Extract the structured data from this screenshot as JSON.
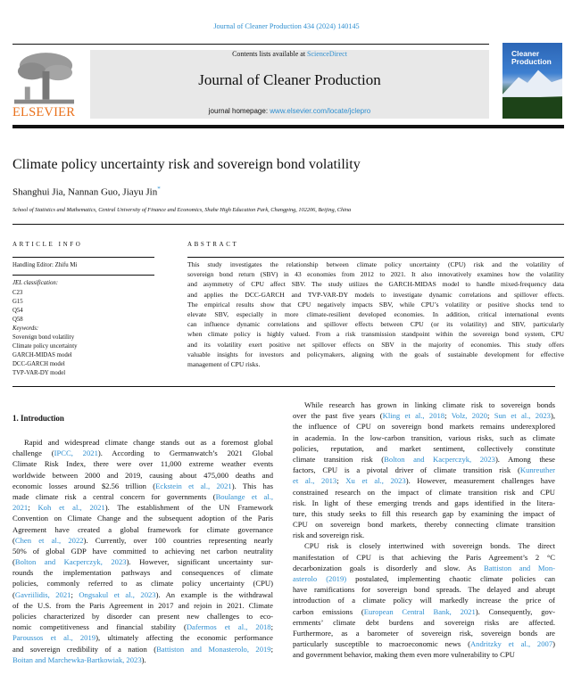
{
  "header": {
    "journal_reference": "Journal of Cleaner Production 434 (2024) 140145",
    "contents_prefix": "Contents lists available at ",
    "contents_link": "ScienceDirect",
    "journal_title": "Journal of Cleaner Production",
    "homepage_prefix": "journal homepage: ",
    "homepage_link": "www.elsevier.com/locate/jclepro",
    "publisher": "ELSEVIER",
    "cover_title": "Cleaner Production",
    "link_color": "#2f8fd0",
    "publisher_color": "#e9711c"
  },
  "article": {
    "title": "Climate policy uncertainty risk and sovereign bond volatility",
    "authors": "Shanghui Jia, Nannan Guo, Jiayu Jin",
    "corresponding_mark": "*",
    "affiliation": "School of Statistics and Mathematics, Central University of Finance and Economics, Shahe High Education Park, Changping, 102206, Beijing, China"
  },
  "article_info": {
    "heading": "ARTICLE INFO",
    "handling_editor": "Handling Editor: Zhifu Mi",
    "jel_label": "JEL classification:",
    "jel_codes": [
      "C23",
      "G15",
      "Q54",
      "Q58"
    ],
    "keywords_label": "Keywords:",
    "keywords": [
      "Sovereign bond volatility",
      "Climate policy uncertainty",
      "GARCH-MIDAS model",
      "DCC-GARCH model",
      "TVP-VAR-DY model"
    ]
  },
  "abstract": {
    "heading": "ABSTRACT",
    "lines": [
      [
        {
          "t": "This study investigates the relationship between climate policy uncertainty (CPU) risk and the volatility of"
        }
      ],
      [
        {
          "t": "sovereign bond return (SBV) in 43 economies from 2012 to 2021. It also innovatively examines how the volatility"
        }
      ],
      [
        {
          "t": "and asymmetry of CPU affect SBV. The study utilizes the GARCH-MIDAS model to handle mixed-frequency data"
        }
      ],
      [
        {
          "t": "and applies the DCC-GARCH and TVP-VAR-DY models to investigate dynamic correlations and spillover effects."
        }
      ],
      [
        {
          "t": "The empirical results show that CPU negatively impacts SBV, while CPU’s volatility or positive shocks tend to"
        }
      ],
      [
        {
          "t": "elevate SBV, especially in more climate-resilient developed economies. In addition, critical international events"
        }
      ],
      [
        {
          "t": "can influence dynamic correlations and spillover effects between CPU (or its volatility) and SBV, particularly"
        }
      ],
      [
        {
          "t": "when climate policy is highly valued. From a risk transmission standpoint within the sovereign bond system, CPU"
        }
      ],
      [
        {
          "t": "and its volatility exert positive net spillover effects on SBV in the majority of economies. This study offers"
        }
      ],
      [
        {
          "t": "valuable insights for investors and policymakers, aligning with the goals of sustainable development for effective"
        }
      ],
      [
        {
          "t": "management of CPU risks."
        }
      ]
    ]
  },
  "introduction": {
    "heading": "1.  Introduction",
    "left_lines": [
      [
        {
          "t": "Rapid and widespread climate change stands out as a foremost global"
        }
      ],
      [
        {
          "t": "challenge ("
        },
        {
          "t": "IPCC, 2021",
          "link": true
        },
        {
          "t": "). According to Germanwatch’s 2021 Global"
        }
      ],
      [
        {
          "t": "Climate Risk Index, there were over 11,000 extreme weather events"
        }
      ],
      [
        {
          "t": "worldwide between 2000 and 2019, causing about 475,000 deaths and"
        }
      ],
      [
        {
          "t": "economic losses around $2.56 trillion ("
        },
        {
          "t": "Eckstein et al., 2021",
          "link": true
        },
        {
          "t": "). This has"
        }
      ],
      [
        {
          "t": "made climate risk a central concern for governments ("
        },
        {
          "t": "Boulange et al.,",
          "link": true
        }
      ],
      [
        {
          "t": "2021",
          "link": true
        },
        {
          "t": "; "
        },
        {
          "t": "Koh et al., 2021",
          "link": true
        },
        {
          "t": "). The establishment of the UN Framework"
        }
      ],
      [
        {
          "t": "Convention on Climate Change and the subsequent adoption of the Paris"
        }
      ],
      [
        {
          "t": "Agreement have created a global framework for climate governance"
        }
      ],
      [
        {
          "t": "("
        },
        {
          "t": "Chen et al., 2022",
          "link": true
        },
        {
          "t": "). Currently, over 100 countries representing nearly"
        }
      ],
      [
        {
          "t": "50% of global GDP have committed to achieving net carbon neutrality"
        }
      ],
      [
        {
          "t": "("
        },
        {
          "t": "Bolton and Kacperczyk, 2023",
          "link": true
        },
        {
          "t": "). However, significant uncertainty sur-"
        }
      ],
      [
        {
          "t": "rounds the implementation pathways and consequences of climate"
        }
      ],
      [
        {
          "t": "policies, commonly referred to as climate policy uncertainty (CPU)"
        }
      ],
      [
        {
          "t": "("
        },
        {
          "t": "Gavriilidis, 2021",
          "link": true
        },
        {
          "t": "; "
        },
        {
          "t": "Ongsakul et al., 2023",
          "link": true
        },
        {
          "t": "). An example is the withdrawal"
        }
      ],
      [
        {
          "t": "of the U.S. from the Paris Agreement in 2017 and rejoin in 2021. Climate"
        }
      ],
      [
        {
          "t": "policies characterized by disorder can present new challenges to eco-"
        }
      ],
      [
        {
          "t": "nomic competitiveness and financial stability ("
        },
        {
          "t": "Dafermos et al., 2018",
          "link": true
        },
        {
          "t": ";"
        }
      ],
      [
        {
          "t": "Paroussos et al., 2019",
          "link": true
        },
        {
          "t": "), ultimately affecting the economic performance"
        }
      ],
      [
        {
          "t": "and sovereign credibility of a nation ("
        },
        {
          "t": "Battiston and Monasterolo, 2019",
          "link": true
        },
        {
          "t": ";"
        }
      ],
      [
        {
          "t": "Boitan and Marchewka-Bartkowiak, 2023",
          "link": true
        },
        {
          "t": ")."
        }
      ]
    ],
    "right_lines": [
      [
        {
          "t": "While research has grown in linking climate risk to sovereign bonds"
        }
      ],
      [
        {
          "t": "over the past five years ("
        },
        {
          "t": "Kling et al., 2018",
          "link": true
        },
        {
          "t": "; "
        },
        {
          "t": "Volz, 2020",
          "link": true
        },
        {
          "t": "; "
        },
        {
          "t": "Sun et al., 2023",
          "link": true
        },
        {
          "t": "),"
        }
      ],
      [
        {
          "t": "the influence of CPU on sovereign bond markets remains underexplored"
        }
      ],
      [
        {
          "t": "in academia. In the low-carbon transition, various risks, such as climate"
        }
      ],
      [
        {
          "t": "policies, reputation, and market sentiment, collectively constitute"
        }
      ],
      [
        {
          "t": "climate transition risk ("
        },
        {
          "t": "Bolton and Kacperczyk, 2023",
          "link": true
        },
        {
          "t": "). Among these"
        }
      ],
      [
        {
          "t": "factors, CPU is a pivotal driver of climate transition risk ("
        },
        {
          "t": "Kunreuther",
          "link": true
        }
      ],
      [
        {
          "t": "et al., 2013",
          "link": true
        },
        {
          "t": "; "
        },
        {
          "t": "Xu et al., 2023",
          "link": true
        },
        {
          "t": "). However, measurement challenges have"
        }
      ],
      [
        {
          "t": "constrained research on the impact of climate transition risk and CPU"
        }
      ],
      [
        {
          "t": "risk. In light of these emerging trends and gaps identified in the litera-"
        }
      ],
      [
        {
          "t": "ture, this study seeks to fill this research gap by examining the impact of"
        }
      ],
      [
        {
          "t": "CPU on sovereign bond markets, thereby connecting climate transition"
        }
      ],
      [
        {
          "t": "risk and sovereign risk."
        }
      ],
      [
        {
          "t": "CPU risk is closely intertwined with sovereign bonds. The direct"
        }
      ],
      [
        {
          "t": "manifestation of CPU is that achieving the Paris Agreement’s 2 °C"
        }
      ],
      [
        {
          "t": "decarbonization goals is disorderly and slow. As "
        },
        {
          "t": "Battiston and Mon-",
          "link": true
        }
      ],
      [
        {
          "t": "asterolo (2019)",
          "link": true
        },
        {
          "t": " postulated, implementing chaotic climate policies can"
        }
      ],
      [
        {
          "t": "have ramifications for sovereign bond spreads. The delayed and abrupt"
        }
      ],
      [
        {
          "t": "introduction of a climate policy will markedly increase the price of"
        }
      ],
      [
        {
          "t": "carbon emissions ("
        },
        {
          "t": "European Central Bank, 2021",
          "link": true
        },
        {
          "t": "). Consequently, gov-"
        }
      ],
      [
        {
          "t": "ernments’ climate debt burdens and sovereign risks are affected."
        }
      ],
      [
        {
          "t": "Furthermore, as a barometer of sovereign risk, sovereign bonds are"
        }
      ],
      [
        {
          "t": "particularly susceptible to macroeconomic news ("
        },
        {
          "t": "Andritzky et al., 2007",
          "link": true
        },
        {
          "t": ")"
        }
      ],
      [
        {
          "t": "and government behavior, making them even more vulnerability to CPU"
        }
      ]
    ]
  }
}
